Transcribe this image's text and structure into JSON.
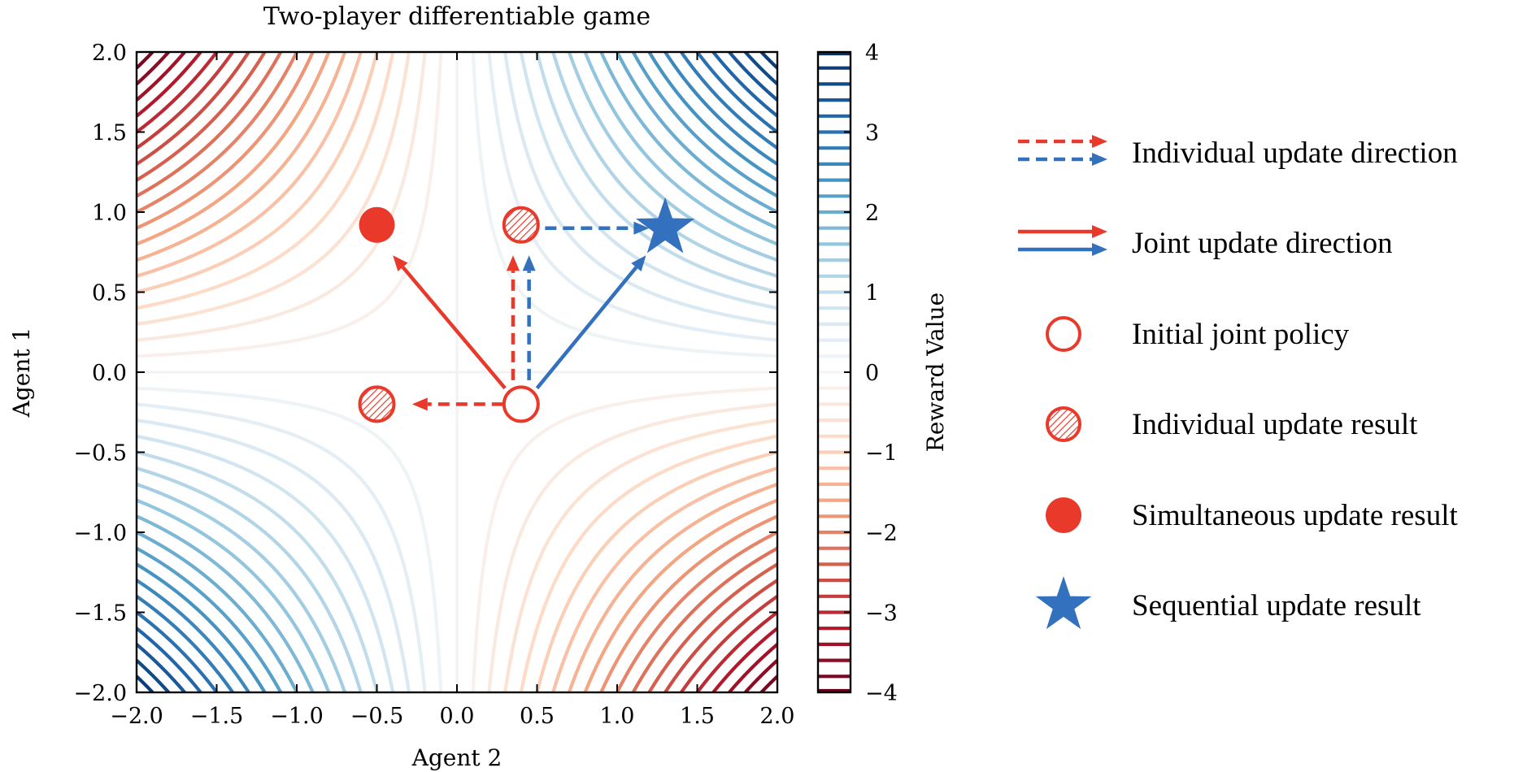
{
  "chart_data": {
    "type": "contour",
    "title": "Two-player differentiable game",
    "xlabel": "Agent 2",
    "ylabel": "Agent 1",
    "xlim": [
      -2.0,
      2.0
    ],
    "ylim": [
      -2.0,
      2.0
    ],
    "xticks": [
      "−2.0",
      "−1.5",
      "−1.0",
      "−0.5",
      "0.0",
      "0.5",
      "1.0",
      "1.5",
      "2.0"
    ],
    "yticks": [
      "2.0",
      "1.5",
      "1.0",
      "0.5",
      "0.0",
      "−0.5",
      "−1.0",
      "−1.5",
      "−2.0"
    ],
    "function": "reward = x * y",
    "contour_levels": {
      "min": -4,
      "max": 4,
      "count": 41
    },
    "colorbar": {
      "label": "Reward Value",
      "ticks": [
        "4",
        "3",
        "2",
        "1",
        "0",
        "−1",
        "−2",
        "−3",
        "−4"
      ],
      "range": [
        -4,
        4
      ],
      "colormap": "RdBu"
    },
    "points": {
      "initial": {
        "x": 0.4,
        "y": -0.2,
        "label": "Initial joint policy"
      },
      "individual_a": {
        "x": -0.5,
        "y": -0.2
      },
      "individual_b": {
        "x": 0.4,
        "y": 0.92
      },
      "simultaneous": {
        "x": -0.5,
        "y": 0.92
      },
      "sequential": {
        "x": 1.3,
        "y": 0.9
      }
    },
    "arrows": [
      {
        "kind": "individual",
        "color": "red",
        "from": [
          0.4,
          -0.2
        ],
        "to": [
          -0.28,
          -0.2
        ]
      },
      {
        "kind": "individual",
        "color": "red",
        "from": [
          0.35,
          -0.05
        ],
        "to": [
          0.35,
          0.73
        ]
      },
      {
        "kind": "individual",
        "color": "blue",
        "from": [
          0.45,
          -0.05
        ],
        "to": [
          0.45,
          0.73
        ]
      },
      {
        "kind": "individual",
        "color": "blue",
        "from": [
          0.55,
          0.9
        ],
        "to": [
          1.2,
          0.9
        ]
      },
      {
        "kind": "joint",
        "color": "red",
        "from": [
          0.3,
          -0.1
        ],
        "to": [
          -0.4,
          0.73
        ]
      },
      {
        "kind": "joint",
        "color": "blue",
        "from": [
          0.5,
          -0.1
        ],
        "to": [
          1.18,
          0.73
        ]
      }
    ]
  },
  "legend": {
    "items": [
      {
        "label": "Individual update direction",
        "symbol": "dashed-arrows"
      },
      {
        "label": "Joint update direction",
        "symbol": "solid-arrows"
      },
      {
        "label": "Initial joint policy",
        "symbol": "hollow-circle"
      },
      {
        "label": "Individual update result",
        "symbol": "hatched-circle"
      },
      {
        "label": "Simultaneous update result",
        "symbol": "filled-circle"
      },
      {
        "label": "Sequential update result",
        "symbol": "star"
      }
    ]
  },
  "colors": {
    "red": "#e8392b",
    "blue": "#3370bd"
  }
}
